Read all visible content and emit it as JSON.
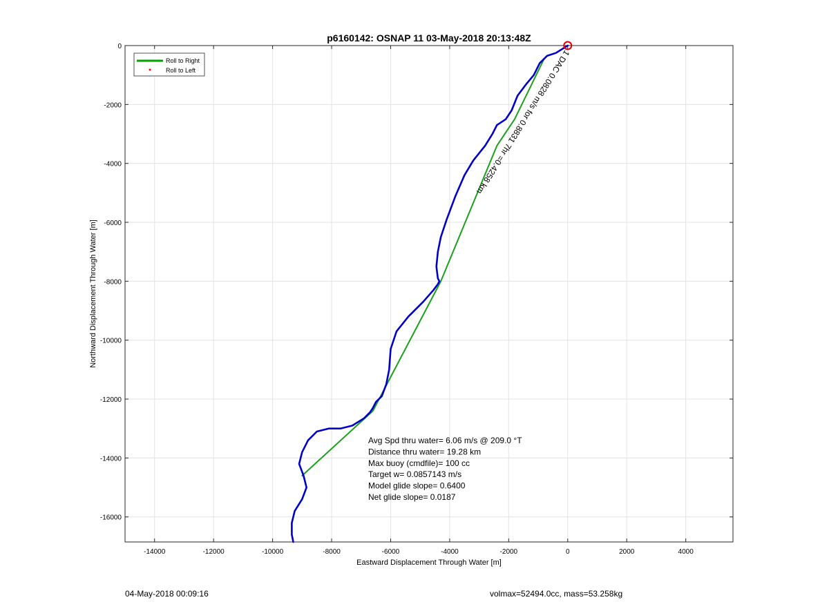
{
  "chart_data": {
    "type": "line",
    "title": "p6160142: OSNAP 11 03-May-2018 20:13:48Z",
    "xlabel": "Eastward Displacement Through Water [m]",
    "ylabel": "Northward Displacement Through Water [m]",
    "xlim": [
      -15000,
      5600
    ],
    "ylim": [
      -16850,
      0
    ],
    "xticks": [
      -14000,
      -12000,
      -10000,
      -8000,
      -6000,
      -4000,
      -2000,
      0,
      2000,
      4000
    ],
    "yticks": [
      0,
      -2000,
      -4000,
      -6000,
      -8000,
      -10000,
      -12000,
      -14000,
      -16000
    ],
    "grid": true,
    "legend_position": "top-left",
    "legend": [
      {
        "label": "Roll to Right",
        "color": "#00a000",
        "style": "line"
      },
      {
        "label": "Roll to Left",
        "color": "#ff0000",
        "style": "dot"
      }
    ],
    "series": [
      {
        "name": "Roll to Right",
        "color": "#1aa01a",
        "x": [
          -9000,
          -6600,
          -4300,
          -2400,
          -1800,
          -800
        ],
        "y": [
          -14600,
          -12400,
          -8000,
          -3400,
          -2500,
          -450
        ]
      },
      {
        "color": "#0000c8",
        "x": [
          0,
          -400,
          -700,
          -950,
          -1150,
          -1400,
          -1700,
          -1900,
          -2100,
          -2250,
          -2400,
          -2550,
          -2800,
          -3200,
          -3500,
          -3800,
          -4100,
          -4300,
          -4400,
          -4450,
          -4400,
          -4350,
          -4400,
          -4550,
          -4900,
          -5400,
          -5800,
          -6000,
          -6050,
          -6150,
          -6300,
          -6500,
          -6600,
          -6700,
          -6900,
          -7300,
          -7700,
          -8100,
          -8500,
          -8800,
          -9000,
          -9100,
          -8950,
          -8850,
          -9000,
          -9250,
          -9350,
          -9350,
          -9300
        ],
        "y": [
          0,
          -250,
          -350,
          -600,
          -1000,
          -1300,
          -1700,
          -2200,
          -2500,
          -2600,
          -2700,
          -3000,
          -3400,
          -3900,
          -4400,
          -5100,
          -5900,
          -6500,
          -7000,
          -7500,
          -7900,
          -8000,
          -8100,
          -8300,
          -8700,
          -9200,
          -9700,
          -10300,
          -11000,
          -11500,
          -11900,
          -12100,
          -12300,
          -12450,
          -12650,
          -12900,
          -13000,
          -13000,
          -13100,
          -13400,
          -13800,
          -14200,
          -14600,
          -15000,
          -15400,
          -15800,
          -16200,
          -16600,
          -16850
        ]
      }
    ],
    "start_marker": {
      "x": 0,
      "y": 0,
      "color": "#e00000"
    },
    "rotated_label": "1 DAC 0.0828 m/s for 0.8831 7hr =0.4258 km",
    "annotations": [
      "Avg Spd thru water=  6.06 m/s @ 209.0 °T",
      "Distance thru water= 19.28 km",
      "Max buoy (cmdfile)= 100 cc",
      "Target w= 0.0857143 m/s",
      "Model glide slope= 0.6400",
      "Net glide slope= 0.0187"
    ]
  },
  "footer": {
    "timestamp": "04-May-2018 00:09:16",
    "stats": "volmax=52494.0cc, mass=53.258kg"
  }
}
